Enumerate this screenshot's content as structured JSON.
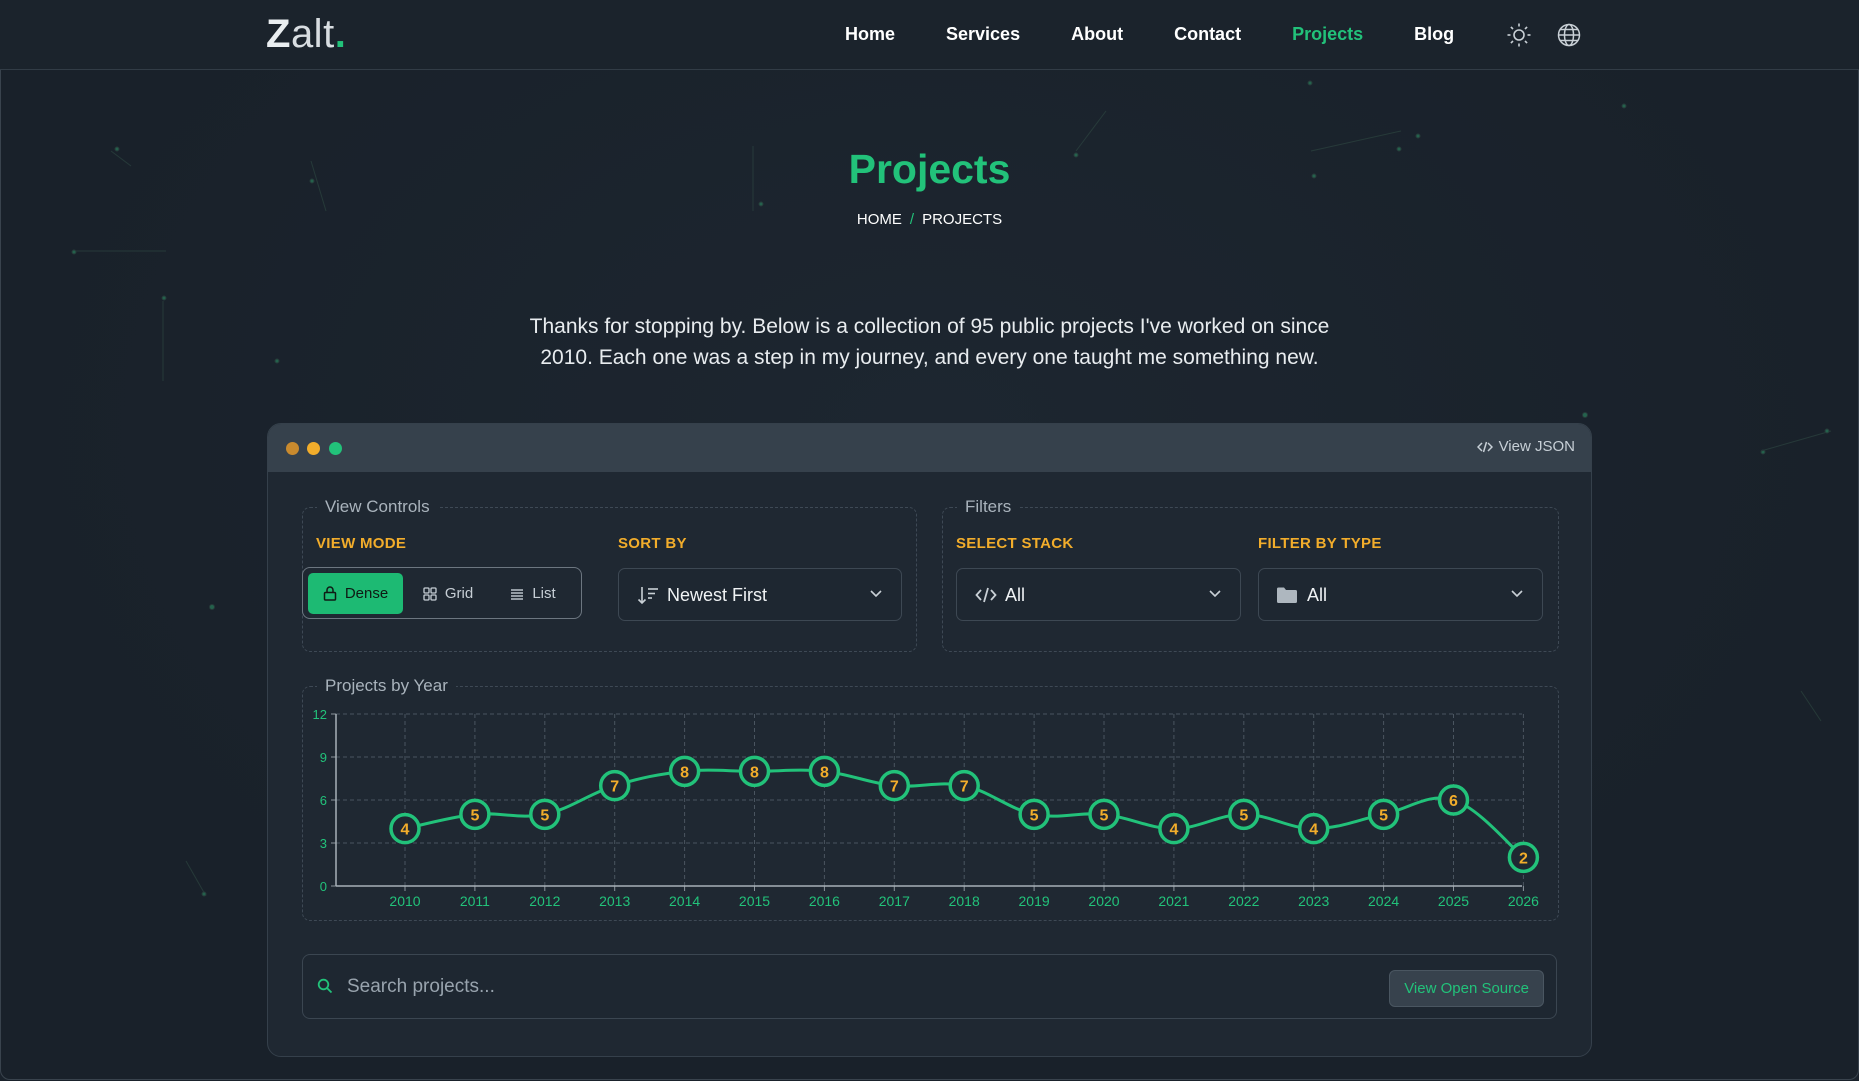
{
  "brand": {
    "logo_initial": "Z",
    "logo_rest": "alt",
    "logo_dot": "."
  },
  "nav": {
    "items": [
      {
        "label": "Home",
        "active": false
      },
      {
        "label": "Services",
        "active": false
      },
      {
        "label": "About",
        "active": false
      },
      {
        "label": "Contact",
        "active": false
      },
      {
        "label": "Projects",
        "active": true
      },
      {
        "label": "Blog",
        "active": false
      }
    ],
    "icons": [
      "sun-icon",
      "globe-icon"
    ]
  },
  "hero": {
    "title": "Projects",
    "breadcrumb": [
      "HOME",
      "PROJECTS"
    ],
    "breadcrumb_separator": "/",
    "intro": "Thanks for stopping by. Below is a collection of 95 public projects I've worked on since 2010. Each one was a step in my journey, and every one taught me something new."
  },
  "window": {
    "view_json_label": "View JSON",
    "traffic_colors": [
      "#c98a2e",
      "#f2ad2b",
      "#22c27a"
    ]
  },
  "view_controls": {
    "legend": "View Controls",
    "view_mode_label": "VIEW MODE",
    "modes": [
      {
        "label": "Dense",
        "icon": "lock-icon",
        "active": true
      },
      {
        "label": "Grid",
        "icon": "grid-icon",
        "active": false
      },
      {
        "label": "List",
        "icon": "list-icon",
        "active": false
      }
    ],
    "sort_label": "SORT BY",
    "sort_value": "Newest First"
  },
  "filters": {
    "legend": "Filters",
    "stack_label": "SELECT STACK",
    "stack_value": "All",
    "type_label": "FILTER BY TYPE",
    "type_value": "All"
  },
  "chart_section": {
    "legend": "Projects by Year"
  },
  "chart_data": {
    "type": "line",
    "title": "Projects by Year",
    "x": [
      "2010",
      "2011",
      "2012",
      "2013",
      "2014",
      "2015",
      "2016",
      "2017",
      "2018",
      "2019",
      "2020",
      "2021",
      "2022",
      "2023",
      "2024",
      "2025",
      "2026"
    ],
    "values": [
      4,
      5,
      5,
      7,
      8,
      8,
      8,
      7,
      7,
      5,
      5,
      4,
      5,
      4,
      5,
      6,
      2
    ],
    "ylim": [
      0,
      12
    ],
    "yticks": [
      0,
      3,
      6,
      9,
      12
    ],
    "grid": true,
    "data_labels": true,
    "colors": {
      "line": "#22c27a",
      "label": "#f2ad2b",
      "axis_text": "#22c27a"
    }
  },
  "search": {
    "placeholder": "Search projects...",
    "value": "",
    "open_source_label": "View Open Source"
  },
  "colors": {
    "accent": "#22c27a",
    "label_orange": "#f2ad2b",
    "background": "#1a222b"
  }
}
